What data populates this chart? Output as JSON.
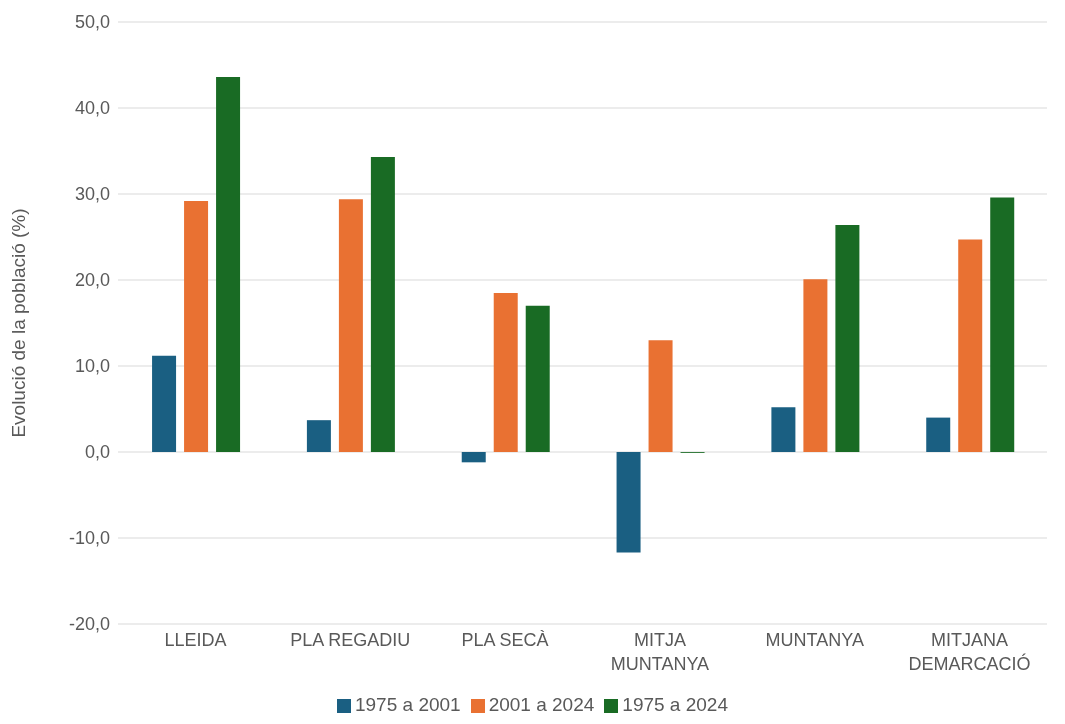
{
  "chart_data": {
    "type": "bar",
    "ylabel": "Evolució de la població (%)",
    "categories": [
      "LLEIDA",
      "PLA REGADIU",
      "PLA SECÀ",
      "MITJA MUNTANYA",
      "MUNTANYA",
      "MITJANA DEMARCACIÓ"
    ],
    "series": [
      {
        "name": "1975 a 2001",
        "color": "#1a5f82",
        "values": [
          11.2,
          3.7,
          -1.2,
          -11.7,
          5.2,
          4.0
        ]
      },
      {
        "name": "2001 a 2024",
        "color": "#e97132",
        "values": [
          29.2,
          29.4,
          18.5,
          13.0,
          20.1,
          24.7
        ]
      },
      {
        "name": "1975 a 2024",
        "color": "#196b24",
        "values": [
          43.6,
          34.3,
          17.0,
          -0.1,
          26.4,
          29.6
        ]
      }
    ],
    "ylim": [
      -20,
      50
    ],
    "yticks": [
      {
        "value": -20,
        "label": "-20,0"
      },
      {
        "value": -10,
        "label": "-10,0"
      },
      {
        "value": 0,
        "label": "0,0"
      },
      {
        "value": 10,
        "label": "10,0"
      },
      {
        "value": 20,
        "label": "20,0"
      },
      {
        "value": 30,
        "label": "30,0"
      },
      {
        "value": 40,
        "label": "40,0"
      },
      {
        "value": 50,
        "label": "50,0"
      }
    ],
    "grid": "y",
    "legend": "bottom"
  }
}
